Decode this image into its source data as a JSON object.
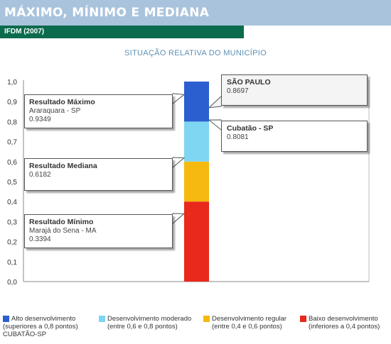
{
  "header": {
    "title": "MÁXIMO, MÍNIMO E MEDIANA",
    "subtitle": "IFDM (2007)"
  },
  "chart_data": {
    "type": "bar",
    "title": "SITUAÇÃO RELATIVA DO MUNICÍPIO",
    "ylim": [
      0,
      1
    ],
    "yticks": [
      "0,0",
      "0,1",
      "0,2",
      "0,3",
      "0,4",
      "0,5",
      "0,6",
      "0,7",
      "0,8",
      "0,9",
      "1,0"
    ],
    "bands": [
      {
        "from": 0.0,
        "to": 0.4,
        "color": "#e8291b"
      },
      {
        "from": 0.4,
        "to": 0.6,
        "color": "#f5b90f"
      },
      {
        "from": 0.6,
        "to": 0.8,
        "color": "#7fd6f2"
      },
      {
        "from": 0.8,
        "to": 1.0,
        "color": "#2b5fcf"
      }
    ],
    "annotations": {
      "maximo": {
        "title": "Resultado Máximo",
        "place": "Araraquara - SP",
        "value": "0.9349",
        "y": 0.9349
      },
      "mediana": {
        "title": "Resultado Mediana",
        "value": "0.6182",
        "y": 0.6182
      },
      "minimo": {
        "title": "Resultado Mínimo",
        "place": "Marajá do Sena - MA",
        "value": "0.3394",
        "y": 0.3394
      },
      "estado": {
        "title": "SÃO PAULO",
        "value": "0.8697",
        "y": 0.8697
      },
      "municipio": {
        "title": "Cubatão - SP",
        "value": "0.8081",
        "y": 0.8081
      }
    }
  },
  "legend": [
    {
      "label": "Alto desenvolvimento",
      "sub": "(superiores a 0,8 pontos)",
      "sub2": "CUBATÃO-SP",
      "color": "#2b5fcf"
    },
    {
      "label": "Desenvolvimento moderado",
      "sub": "(entre 0,6 e 0,8 pontos)",
      "color": "#7fd6f2"
    },
    {
      "label": "Desenvolvimento regular",
      "sub": "(entre 0,4 e 0,6 pontos)",
      "color": "#f5b90f"
    },
    {
      "label": "Baixo desenvolvimento",
      "sub": "(inferiores a 0,4 pontos)",
      "color": "#e8291b"
    }
  ]
}
